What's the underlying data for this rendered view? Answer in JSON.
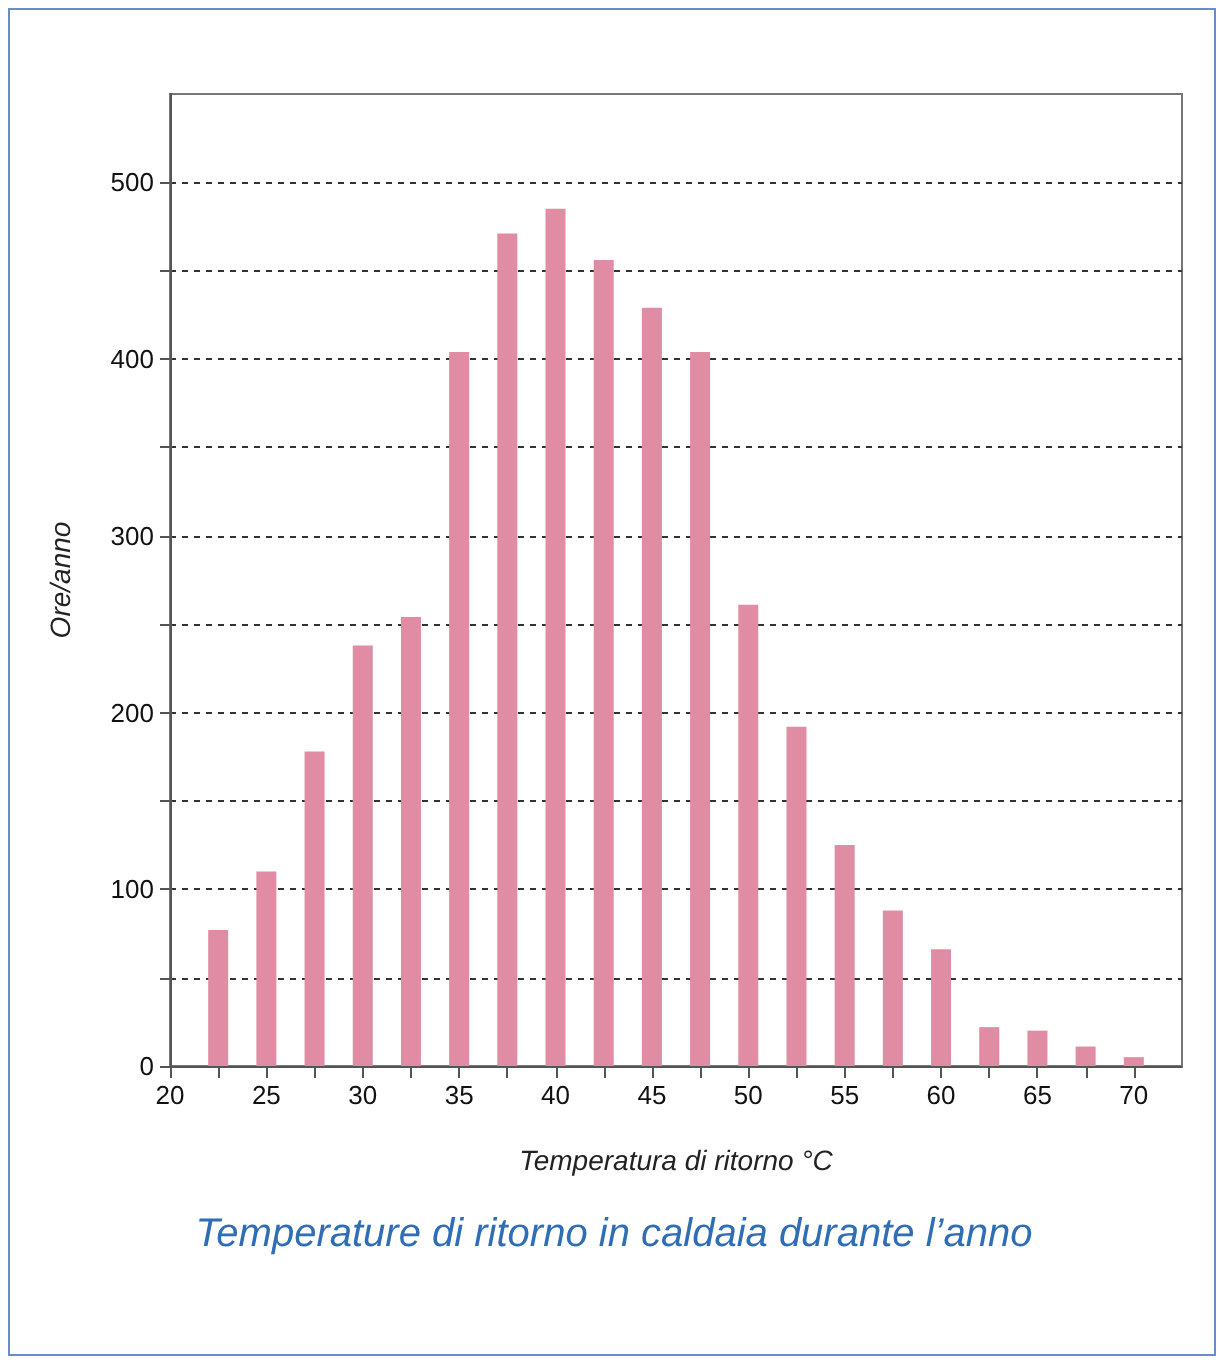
{
  "chart_data": {
    "type": "bar",
    "title": "Temperature di ritorno in caldaia durante l’anno",
    "xlabel": "Temperatura di ritorno °C",
    "ylabel": "Ore/anno",
    "x": [
      22.5,
      25,
      27.5,
      30,
      32.5,
      35,
      37.5,
      40,
      42.5,
      45,
      47.5,
      50,
      52.5,
      55,
      57.5,
      60,
      62.5,
      65,
      67.5,
      70
    ],
    "values": [
      77,
      110,
      178,
      238,
      254,
      404,
      471,
      485,
      456,
      429,
      404,
      261,
      192,
      125,
      88,
      66,
      22,
      20,
      11,
      5
    ],
    "color": "#e08ca4",
    "xlim": [
      20,
      72.5
    ],
    "xticks": [
      20,
      {
        "value": 22.5,
        "label": null
      },
      25,
      {
        "value": 27.5,
        "label": null
      },
      30,
      {
        "value": 32.5,
        "label": null
      },
      35,
      {
        "value": 37.5,
        "label": null
      },
      40,
      {
        "value": 42.5,
        "label": null
      },
      45,
      {
        "value": 47.5,
        "label": null
      },
      50,
      {
        "value": 52.5,
        "label": null
      },
      55,
      {
        "value": 57.5,
        "label": null
      },
      60,
      {
        "value": 62.5,
        "label": null
      },
      65,
      {
        "value": 67.5,
        "label": null
      },
      70
    ],
    "ylim": [
      0,
      550
    ],
    "yticks": [
      0,
      {
        "value": 50,
        "label": null
      },
      100,
      {
        "value": 150,
        "label": null
      },
      200,
      {
        "value": 250,
        "label": null
      },
      300,
      {
        "value": 350,
        "label": null
      },
      400,
      {
        "value": 450,
        "label": null
      },
      500
    ],
    "grid": "y",
    "line_style": "dashed"
  }
}
